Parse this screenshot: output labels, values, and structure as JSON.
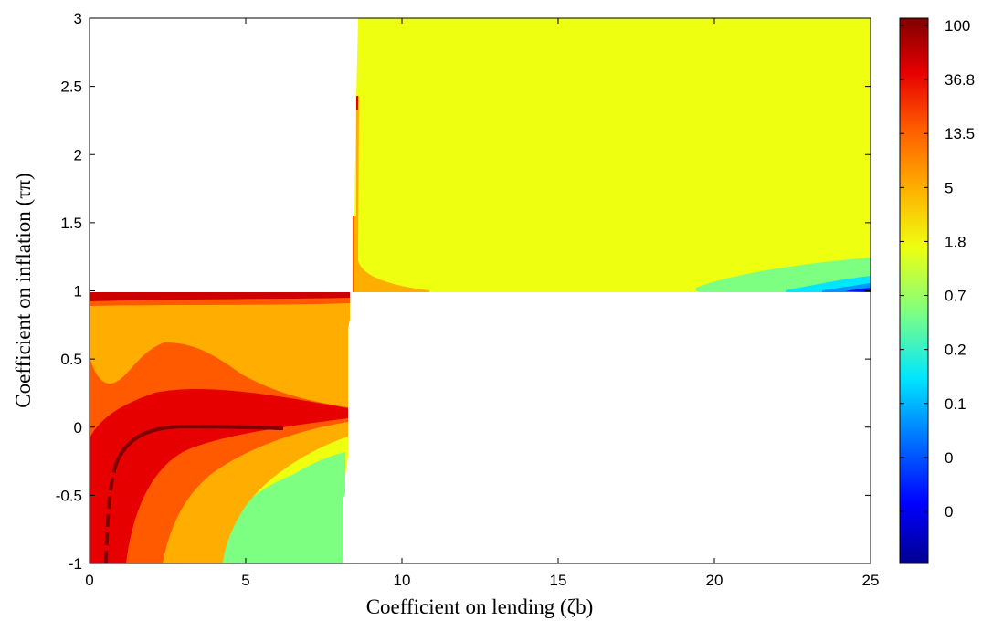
{
  "chart_data": {
    "type": "heatmap",
    "subtype": "filled-contour",
    "title": "",
    "xlabel": "Coefficient on lending (ζb)",
    "ylabel": "Coefficient on inflation (τπ)",
    "xlim": [
      0,
      25
    ],
    "ylim": [
      -1,
      3
    ],
    "x_ticks": [
      0,
      5,
      10,
      15,
      20,
      25
    ],
    "x_tick_labels": [
      "0",
      "5",
      "10",
      "15",
      "20",
      "25"
    ],
    "y_ticks": [
      -1,
      -0.5,
      0,
      0.5,
      1,
      1.5,
      2,
      2.5,
      3
    ],
    "y_tick_labels": [
      "-1",
      "-0.5",
      "0",
      "0.5",
      "1",
      "1.5",
      "2",
      "2.5",
      "3"
    ],
    "grid": false,
    "colorbar": {
      "scale": "log",
      "colormap": "jet",
      "tick_labels": [
        "100",
        "36.8",
        "13.5",
        "5",
        "1.8",
        "0.7",
        "0.2",
        "0.1",
        "0",
        "0"
      ],
      "colors": [
        "#800000",
        "#e60000",
        "#ff5a00",
        "#ffae00",
        "#eeff10",
        "#7dff82",
        "#00e6ff",
        "#0096ff",
        "#0010ff",
        "#00008f"
      ]
    },
    "regions": [
      {
        "name": "determinate-region-low",
        "x_range": [
          0,
          8.2
        ],
        "y_range": [
          -1,
          1
        ],
        "values_range": [
          1.8,
          100
        ]
      },
      {
        "name": "determinate-region-high",
        "x_range": [
          8.6,
          25
        ],
        "y_range": [
          1,
          3
        ],
        "values_range": [
          0.1,
          5
        ]
      }
    ],
    "blank_regions": [
      {
        "x_range": [
          0,
          8.5
        ],
        "y_range": [
          1,
          3
        ]
      },
      {
        "x_range": [
          8.3,
          25
        ],
        "y_range": [
          -1,
          1
        ]
      }
    ]
  }
}
